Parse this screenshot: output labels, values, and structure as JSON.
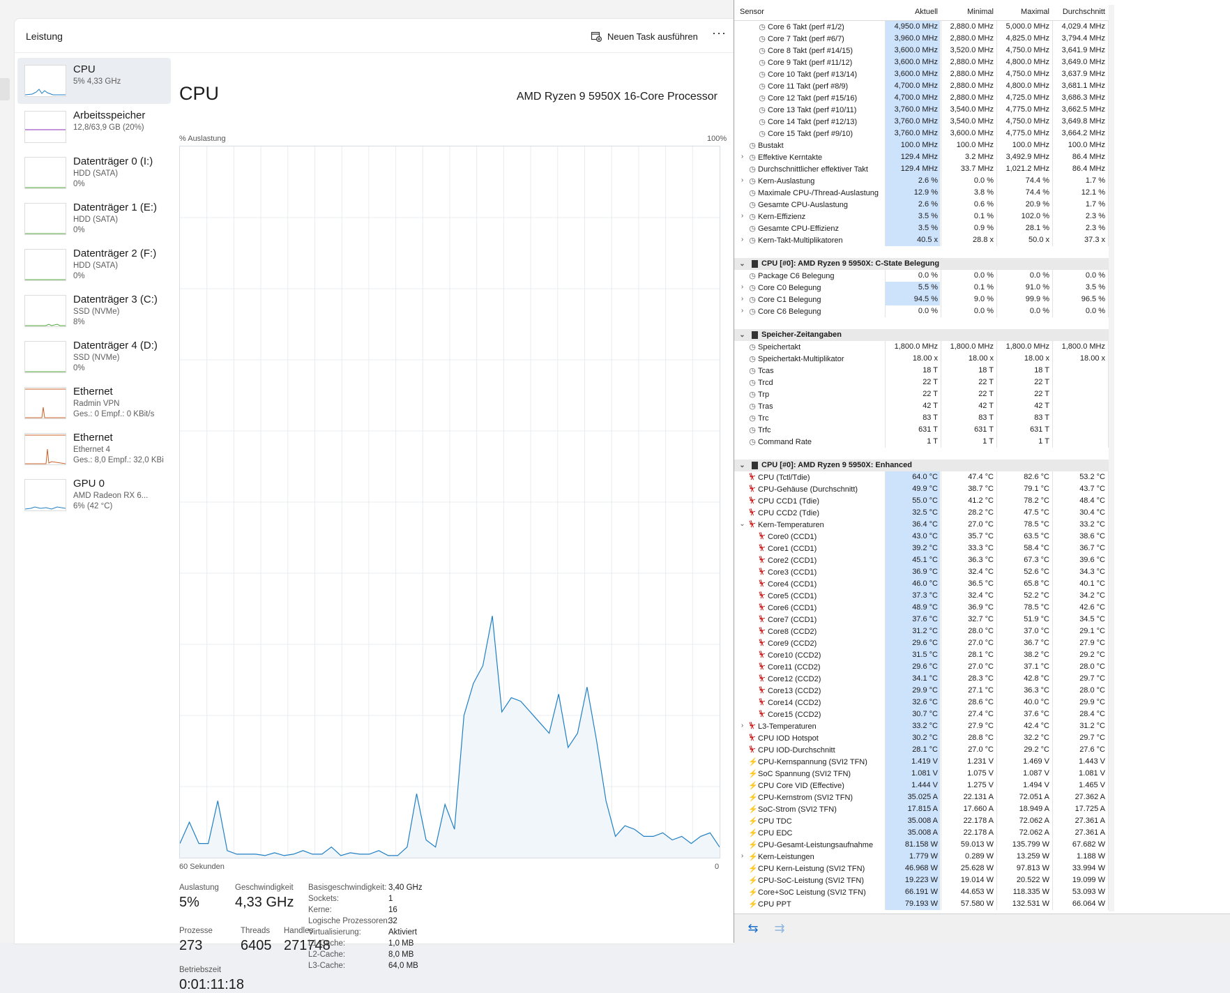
{
  "taskmanager": {
    "title": "Leistung",
    "run_task": "Neuen Task ausführen",
    "more": "···",
    "devices": [
      {
        "name": "CPU",
        "l1": "5% 4,33 GHz",
        "l2": "",
        "color": "#1f7fc4"
      },
      {
        "name": "Arbeitsspeicher",
        "l1": "12,8/63,9 GB (20%)",
        "l2": "",
        "color": "#8a2bb6"
      },
      {
        "name": "Datenträger 0 (I:)",
        "l1": "HDD (SATA)",
        "l2": "0%",
        "color": "#4fa63a"
      },
      {
        "name": "Datenträger 1 (E:)",
        "l1": "HDD (SATA)",
        "l2": "0%",
        "color": "#4fa63a"
      },
      {
        "name": "Datenträger 2 (F:)",
        "l1": "HDD (SATA)",
        "l2": "0%",
        "color": "#4fa63a"
      },
      {
        "name": "Datenträger 3 (C:)",
        "l1": "SSD (NVMe)",
        "l2": "8%",
        "color": "#4fa63a"
      },
      {
        "name": "Datenträger 4 (D:)",
        "l1": "SSD (NVMe)",
        "l2": "0%",
        "color": "#4fa63a"
      },
      {
        "name": "Ethernet",
        "l1": "Radmin VPN",
        "l2": "Ges.: 0 Empf.: 0 KBit/s",
        "color": "#c8612a"
      },
      {
        "name": "Ethernet",
        "l1": "Ethernet 4",
        "l2": "Ges.: 8,0 Empf.: 32,0 KBi",
        "color": "#c8612a"
      },
      {
        "name": "GPU 0",
        "l1": "AMD Radeon RX 6...",
        "l2": "6% (42 °C)",
        "color": "#1f7fc4"
      }
    ],
    "cpu": {
      "title": "CPU",
      "model": "AMD Ryzen 9 5950X 16-Core Processor",
      "util_label": "% Auslastung",
      "util_max": "100%",
      "x_left": "60 Sekunden",
      "x_right": "0",
      "graph_color": "#1f7fc4",
      "utilization_pct": [
        2,
        5,
        2,
        2,
        8,
        1,
        0.5,
        0.5,
        0.5,
        0.3,
        0.7,
        0.3,
        0.5,
        1,
        0.5,
        0.5,
        1.5,
        0.3,
        0.7,
        0.5,
        0.5,
        1,
        0.3,
        0.3,
        1.5,
        9,
        2.5,
        1.5,
        7.5,
        4,
        20,
        24.5,
        27,
        34,
        20.5,
        22.5,
        22,
        20.5,
        19,
        17.5,
        23,
        15.5,
        17.5,
        24,
        16.5,
        8,
        3,
        4.5,
        4,
        3,
        3,
        3.5,
        2.5,
        3,
        2,
        3,
        3.5,
        1.5
      ],
      "stats": {
        "auslastung_label": "Auslastung",
        "auslastung": "5%",
        "speed_label": "Geschwindigkeit",
        "speed": "4,33 GHz",
        "prozesse_label": "Prozesse",
        "prozesse": "273",
        "threads_label": "Threads",
        "threads": "6405",
        "handles_label": "Handles",
        "handles": "271748",
        "uptime_label": "Betriebszeit",
        "uptime": "0:01:11:18"
      },
      "details": [
        {
          "k": "Basisgeschwindigkeit:",
          "v": "3,40 GHz"
        },
        {
          "k": "Sockets:",
          "v": "1"
        },
        {
          "k": "Kerne:",
          "v": "16"
        },
        {
          "k": "Logische Prozessoren:",
          "v": "32"
        },
        {
          "k": "Virtualisierung:",
          "v": "Aktiviert"
        },
        {
          "k": "L1-Cache:",
          "v": "1,0 MB"
        },
        {
          "k": "L2-Cache:",
          "v": "8,0 MB"
        },
        {
          "k": "L3-Cache:",
          "v": "64,0 MB"
        }
      ]
    }
  },
  "hwinfo": {
    "headers": {
      "sensor": "Sensor",
      "current": "Aktuell",
      "min": "Minimal",
      "max": "Maximal",
      "avg": "Durchschnitt"
    },
    "rows": [
      {
        "t": "s",
        "icon": "clk",
        "ind": 2,
        "n": "Core 6 Takt (perf #1/2)",
        "v": [
          "4,950.0 MHz",
          "2,880.0 MHz",
          "5,000.0 MHz",
          "4,029.4 MHz"
        ]
      },
      {
        "t": "s",
        "icon": "clk",
        "ind": 2,
        "n": "Core 7 Takt (perf #6/7)",
        "v": [
          "3,960.0 MHz",
          "2,880.0 MHz",
          "4,825.0 MHz",
          "3,794.4 MHz"
        ]
      },
      {
        "t": "s",
        "icon": "clk",
        "ind": 2,
        "n": "Core 8 Takt (perf #14/15)",
        "v": [
          "3,600.0 MHz",
          "3,520.0 MHz",
          "4,750.0 MHz",
          "3,641.9 MHz"
        ]
      },
      {
        "t": "s",
        "icon": "clk",
        "ind": 2,
        "n": "Core 9 Takt (perf #11/12)",
        "v": [
          "3,600.0 MHz",
          "2,880.0 MHz",
          "4,800.0 MHz",
          "3,649.0 MHz"
        ]
      },
      {
        "t": "s",
        "icon": "clk",
        "ind": 2,
        "n": "Core 10 Takt (perf #13/14)",
        "v": [
          "3,600.0 MHz",
          "2,880.0 MHz",
          "4,750.0 MHz",
          "3,637.9 MHz"
        ]
      },
      {
        "t": "s",
        "icon": "clk",
        "ind": 2,
        "n": "Core 11 Takt (perf #8/9)",
        "v": [
          "4,700.0 MHz",
          "2,880.0 MHz",
          "4,800.0 MHz",
          "3,681.1 MHz"
        ]
      },
      {
        "t": "s",
        "icon": "clk",
        "ind": 2,
        "n": "Core 12 Takt (perf #15/16)",
        "v": [
          "4,700.0 MHz",
          "2,880.0 MHz",
          "4,725.0 MHz",
          "3,686.3 MHz"
        ]
      },
      {
        "t": "s",
        "icon": "clk",
        "ind": 2,
        "n": "Core 13 Takt (perf #10/11)",
        "v": [
          "3,760.0 MHz",
          "3,540.0 MHz",
          "4,775.0 MHz",
          "3,662.5 MHz"
        ]
      },
      {
        "t": "s",
        "icon": "clk",
        "ind": 2,
        "n": "Core 14 Takt (perf #12/13)",
        "v": [
          "3,760.0 MHz",
          "3,540.0 MHz",
          "4,750.0 MHz",
          "3,649.8 MHz"
        ]
      },
      {
        "t": "s",
        "icon": "clk",
        "ind": 2,
        "n": "Core 15 Takt (perf #9/10)",
        "v": [
          "3,760.0 MHz",
          "3,600.0 MHz",
          "4,775.0 MHz",
          "3,664.2 MHz"
        ]
      },
      {
        "t": "s",
        "icon": "clk",
        "ind": 1,
        "n": "Bustakt",
        "v": [
          "100.0 MHz",
          "100.0 MHz",
          "100.0 MHz",
          "100.0 MHz"
        ]
      },
      {
        "t": "s",
        "icon": "clk",
        "ind": 1,
        "exp": "›",
        "n": "Effektive Kerntakte",
        "v": [
          "129.4 MHz",
          "3.2 MHz",
          "3,492.9 MHz",
          "86.4 MHz"
        ]
      },
      {
        "t": "s",
        "icon": "clk",
        "ind": 1,
        "n": "Durchschnittlicher effektiver Takt",
        "v": [
          "129.4 MHz",
          "33.7 MHz",
          "1,021.2 MHz",
          "86.4 MHz"
        ]
      },
      {
        "t": "s",
        "icon": "clk",
        "ind": 1,
        "exp": "›",
        "n": "Kern-Auslastung",
        "v": [
          "2.6 %",
          "0.0 %",
          "74.4 %",
          "1.7 %"
        ]
      },
      {
        "t": "s",
        "icon": "clk",
        "ind": 1,
        "n": "Maximale CPU-/Thread-Auslastung",
        "v": [
          "12.9 %",
          "3.8 %",
          "74.4 %",
          "12.1 %"
        ]
      },
      {
        "t": "s",
        "icon": "clk",
        "ind": 1,
        "n": "Gesamte CPU-Auslastung",
        "v": [
          "2.6 %",
          "0.6 %",
          "20.9 %",
          "1.7 %"
        ]
      },
      {
        "t": "s",
        "icon": "clk",
        "ind": 1,
        "exp": "›",
        "n": "Kern-Effizienz",
        "v": [
          "3.5 %",
          "0.1 %",
          "102.0 %",
          "2.3 %"
        ]
      },
      {
        "t": "s",
        "icon": "clk",
        "ind": 1,
        "n": "Gesamte CPU-Effizienz",
        "v": [
          "3.5 %",
          "0.9 %",
          "28.1 %",
          "2.3 %"
        ]
      },
      {
        "t": "s",
        "icon": "clk",
        "ind": 1,
        "exp": "›",
        "n": "Kern-Takt-Multiplikatoren",
        "v": [
          "40.5 x",
          "28.8 x",
          "50.0 x",
          "37.3 x"
        ]
      },
      {
        "t": "gap"
      },
      {
        "t": "g",
        "n": "CPU [#0]: AMD Ryzen 9 5950X: C-State Belegung"
      },
      {
        "t": "s",
        "icon": "clk",
        "ind": 1,
        "n": "Package C6 Belegung",
        "hl": false,
        "v": [
          "0.0 %",
          "0.0 %",
          "0.0 %",
          "0.0 %"
        ]
      },
      {
        "t": "s",
        "icon": "clk",
        "ind": 1,
        "exp": "›",
        "n": "Core C0 Belegung",
        "v": [
          "5.5 %",
          "0.1 %",
          "91.0 %",
          "3.5 %"
        ]
      },
      {
        "t": "s",
        "icon": "clk",
        "ind": 1,
        "exp": "›",
        "n": "Core C1 Belegung",
        "v": [
          "94.5 %",
          "9.0 %",
          "99.9 %",
          "96.5 %"
        ]
      },
      {
        "t": "s",
        "icon": "clk",
        "ind": 1,
        "exp": "›",
        "n": "Core C6 Belegung",
        "hl": false,
        "v": [
          "0.0 %",
          "0.0 %",
          "0.0 %",
          "0.0 %"
        ]
      },
      {
        "t": "gap"
      },
      {
        "t": "g",
        "n": "Speicher-Zeitangaben"
      },
      {
        "t": "s",
        "icon": "clk",
        "ind": 1,
        "n": "Speichertakt",
        "hl": false,
        "v": [
          "1,800.0 MHz",
          "1,800.0 MHz",
          "1,800.0 MHz",
          "1,800.0 MHz"
        ]
      },
      {
        "t": "s",
        "icon": "clk",
        "ind": 1,
        "n": "Speichertakt-Multiplikator",
        "hl": false,
        "v": [
          "18.00 x",
          "18.00 x",
          "18.00 x",
          "18.00 x"
        ]
      },
      {
        "t": "s",
        "icon": "clk",
        "ind": 1,
        "n": "Tcas",
        "hl": false,
        "v": [
          "18 T",
          "18 T",
          "18 T",
          ""
        ]
      },
      {
        "t": "s",
        "icon": "clk",
        "ind": 1,
        "n": "Trcd",
        "hl": false,
        "v": [
          "22 T",
          "22 T",
          "22 T",
          ""
        ]
      },
      {
        "t": "s",
        "icon": "clk",
        "ind": 1,
        "n": "Trp",
        "hl": false,
        "v": [
          "22 T",
          "22 T",
          "22 T",
          ""
        ]
      },
      {
        "t": "s",
        "icon": "clk",
        "ind": 1,
        "n": "Tras",
        "hl": false,
        "v": [
          "42 T",
          "42 T",
          "42 T",
          ""
        ]
      },
      {
        "t": "s",
        "icon": "clk",
        "ind": 1,
        "n": "Trc",
        "hl": false,
        "v": [
          "83 T",
          "83 T",
          "83 T",
          ""
        ]
      },
      {
        "t": "s",
        "icon": "clk",
        "ind": 1,
        "n": "Trfc",
        "hl": false,
        "v": [
          "631 T",
          "631 T",
          "631 T",
          ""
        ]
      },
      {
        "t": "s",
        "icon": "clk",
        "ind": 1,
        "n": "Command Rate",
        "hl": false,
        "v": [
          "1 T",
          "1 T",
          "1 T",
          ""
        ]
      },
      {
        "t": "gap"
      },
      {
        "t": "g",
        "n": "CPU [#0]: AMD Ryzen 9 5950X: Enhanced"
      },
      {
        "t": "s",
        "icon": "tmp",
        "ind": 1,
        "n": "CPU (Tctl/Tdie)",
        "v": [
          "64.0 °C",
          "47.4 °C",
          "82.6 °C",
          "53.2 °C"
        ]
      },
      {
        "t": "s",
        "icon": "tmp",
        "ind": 1,
        "n": "CPU-Gehäuse (Durchschnitt)",
        "v": [
          "49.9 °C",
          "38.7 °C",
          "79.1 °C",
          "43.7 °C"
        ]
      },
      {
        "t": "s",
        "icon": "tmp",
        "ind": 1,
        "n": "CPU CCD1 (Tdie)",
        "v": [
          "55.0 °C",
          "41.2 °C",
          "78.2 °C",
          "48.4 °C"
        ]
      },
      {
        "t": "s",
        "icon": "tmp",
        "ind": 1,
        "n": "CPU CCD2 (Tdie)",
        "v": [
          "32.5 °C",
          "28.2 °C",
          "47.5 °C",
          "30.4 °C"
        ]
      },
      {
        "t": "s",
        "icon": "tmp",
        "ind": 1,
        "exp": "⌄",
        "n": "Kern-Temperaturen",
        "v": [
          "36.4 °C",
          "27.0 °C",
          "78.5 °C",
          "33.2 °C"
        ]
      },
      {
        "t": "s",
        "icon": "tmp",
        "ind": 2,
        "n": "Core0 (CCD1)",
        "v": [
          "43.0 °C",
          "35.7 °C",
          "63.5 °C",
          "38.6 °C"
        ]
      },
      {
        "t": "s",
        "icon": "tmp",
        "ind": 2,
        "n": "Core1 (CCD1)",
        "v": [
          "39.2 °C",
          "33.3 °C",
          "58.4 °C",
          "36.7 °C"
        ]
      },
      {
        "t": "s",
        "icon": "tmp",
        "ind": 2,
        "n": "Core2 (CCD1)",
        "v": [
          "45.1 °C",
          "36.3 °C",
          "67.3 °C",
          "39.6 °C"
        ]
      },
      {
        "t": "s",
        "icon": "tmp",
        "ind": 2,
        "n": "Core3 (CCD1)",
        "v": [
          "36.9 °C",
          "32.4 °C",
          "52.6 °C",
          "34.3 °C"
        ]
      },
      {
        "t": "s",
        "icon": "tmp",
        "ind": 2,
        "n": "Core4 (CCD1)",
        "v": [
          "46.0 °C",
          "36.5 °C",
          "65.8 °C",
          "40.1 °C"
        ]
      },
      {
        "t": "s",
        "icon": "tmp",
        "ind": 2,
        "n": "Core5 (CCD1)",
        "v": [
          "37.3 °C",
          "32.4 °C",
          "52.2 °C",
          "34.2 °C"
        ]
      },
      {
        "t": "s",
        "icon": "tmp",
        "ind": 2,
        "n": "Core6 (CCD1)",
        "v": [
          "48.9 °C",
          "36.9 °C",
          "78.5 °C",
          "42.6 °C"
        ]
      },
      {
        "t": "s",
        "icon": "tmp",
        "ind": 2,
        "n": "Core7 (CCD1)",
        "v": [
          "37.6 °C",
          "32.7 °C",
          "51.9 °C",
          "34.5 °C"
        ]
      },
      {
        "t": "s",
        "icon": "tmp",
        "ind": 2,
        "n": "Core8 (CCD2)",
        "v": [
          "31.2 °C",
          "28.0 °C",
          "37.0 °C",
          "29.1 °C"
        ]
      },
      {
        "t": "s",
        "icon": "tmp",
        "ind": 2,
        "n": "Core9 (CCD2)",
        "v": [
          "29.6 °C",
          "27.0 °C",
          "36.7 °C",
          "27.9 °C"
        ]
      },
      {
        "t": "s",
        "icon": "tmp",
        "ind": 2,
        "n": "Core10 (CCD2)",
        "v": [
          "31.5 °C",
          "28.1 °C",
          "38.2 °C",
          "29.2 °C"
        ]
      },
      {
        "t": "s",
        "icon": "tmp",
        "ind": 2,
        "n": "Core11 (CCD2)",
        "v": [
          "29.6 °C",
          "27.0 °C",
          "37.1 °C",
          "28.0 °C"
        ]
      },
      {
        "t": "s",
        "icon": "tmp",
        "ind": 2,
        "n": "Core12 (CCD2)",
        "v": [
          "34.1 °C",
          "28.3 °C",
          "42.8 °C",
          "29.7 °C"
        ]
      },
      {
        "t": "s",
        "icon": "tmp",
        "ind": 2,
        "n": "Core13 (CCD2)",
        "v": [
          "29.9 °C",
          "27.1 °C",
          "36.3 °C",
          "28.0 °C"
        ]
      },
      {
        "t": "s",
        "icon": "tmp",
        "ind": 2,
        "n": "Core14 (CCD2)",
        "v": [
          "32.6 °C",
          "28.6 °C",
          "40.0 °C",
          "29.9 °C"
        ]
      },
      {
        "t": "s",
        "icon": "tmp",
        "ind": 2,
        "n": "Core15 (CCD2)",
        "v": [
          "30.7 °C",
          "27.4 °C",
          "37.6 °C",
          "28.4 °C"
        ]
      },
      {
        "t": "s",
        "icon": "tmp",
        "ind": 1,
        "exp": "›",
        "n": "L3-Temperaturen",
        "v": [
          "33.2 °C",
          "27.9 °C",
          "42.4 °C",
          "31.2 °C"
        ]
      },
      {
        "t": "s",
        "icon": "tmp",
        "ind": 1,
        "n": "CPU IOD Hotspot",
        "v": [
          "30.2 °C",
          "28.8 °C",
          "32.2 °C",
          "29.7 °C"
        ]
      },
      {
        "t": "s",
        "icon": "tmp",
        "ind": 1,
        "n": "CPU IOD-Durchschnitt",
        "v": [
          "28.1 °C",
          "27.0 °C",
          "29.2 °C",
          "27.6 °C"
        ]
      },
      {
        "t": "s",
        "icon": "vlt",
        "ind": 1,
        "n": "CPU-Kernspannung (SVI2 TFN)",
        "v": [
          "1.419 V",
          "1.231 V",
          "1.469 V",
          "1.443 V"
        ]
      },
      {
        "t": "s",
        "icon": "vlt",
        "ind": 1,
        "n": "SoC Spannung (SVI2 TFN)",
        "v": [
          "1.081 V",
          "1.075 V",
          "1.087 V",
          "1.081 V"
        ]
      },
      {
        "t": "s",
        "icon": "vlt",
        "ind": 1,
        "n": "CPU Core VID (Effective)",
        "v": [
          "1.444 V",
          "1.275 V",
          "1.494 V",
          "1.465 V"
        ]
      },
      {
        "t": "s",
        "icon": "vlt",
        "ind": 1,
        "n": "CPU-Kernstrom (SVI2 TFN)",
        "v": [
          "35.025 A",
          "22.131 A",
          "72.051 A",
          "27.362 A"
        ]
      },
      {
        "t": "s",
        "icon": "vlt",
        "ind": 1,
        "n": "SoC-Strom (SVI2 TFN)",
        "v": [
          "17.815 A",
          "17.660 A",
          "18.949 A",
          "17.725 A"
        ]
      },
      {
        "t": "s",
        "icon": "vlt",
        "ind": 1,
        "n": "CPU TDC",
        "v": [
          "35.008 A",
          "22.178 A",
          "72.062 A",
          "27.361 A"
        ]
      },
      {
        "t": "s",
        "icon": "vlt",
        "ind": 1,
        "n": "CPU EDC",
        "v": [
          "35.008 A",
          "22.178 A",
          "72.062 A",
          "27.361 A"
        ]
      },
      {
        "t": "s",
        "icon": "vlt",
        "ind": 1,
        "n": "CPU-Gesamt-Leistungsaufnahme",
        "v": [
          "81.158 W",
          "59.013 W",
          "135.799 W",
          "67.682 W"
        ]
      },
      {
        "t": "s",
        "icon": "vlt",
        "ind": 1,
        "exp": "›",
        "n": "Kern-Leistungen",
        "v": [
          "1.779 W",
          "0.289 W",
          "13.259 W",
          "1.188 W"
        ]
      },
      {
        "t": "s",
        "icon": "vlt",
        "ind": 1,
        "n": "CPU Kern-Leistung (SVI2 TFN)",
        "v": [
          "46.968 W",
          "25.628 W",
          "97.813 W",
          "33.994 W"
        ]
      },
      {
        "t": "s",
        "icon": "vlt",
        "ind": 1,
        "n": "CPU-SoC-Leistung (SVI2 TFN)",
        "v": [
          "19.223 W",
          "19.014 W",
          "20.522 W",
          "19.099 W"
        ]
      },
      {
        "t": "s",
        "icon": "vlt",
        "ind": 1,
        "n": "Core+SoC Leistung (SVI2 TFN)",
        "v": [
          "66.191 W",
          "44.653 W",
          "118.335 W",
          "53.093 W"
        ]
      },
      {
        "t": "s",
        "icon": "vlt",
        "ind": 1,
        "n": "CPU PPT",
        "v": [
          "79.193 W",
          "57.580 W",
          "132.531 W",
          "66.064 W"
        ]
      }
    ],
    "footer": {
      "nav_left": "⇆",
      "nav_right": "⇉"
    }
  }
}
